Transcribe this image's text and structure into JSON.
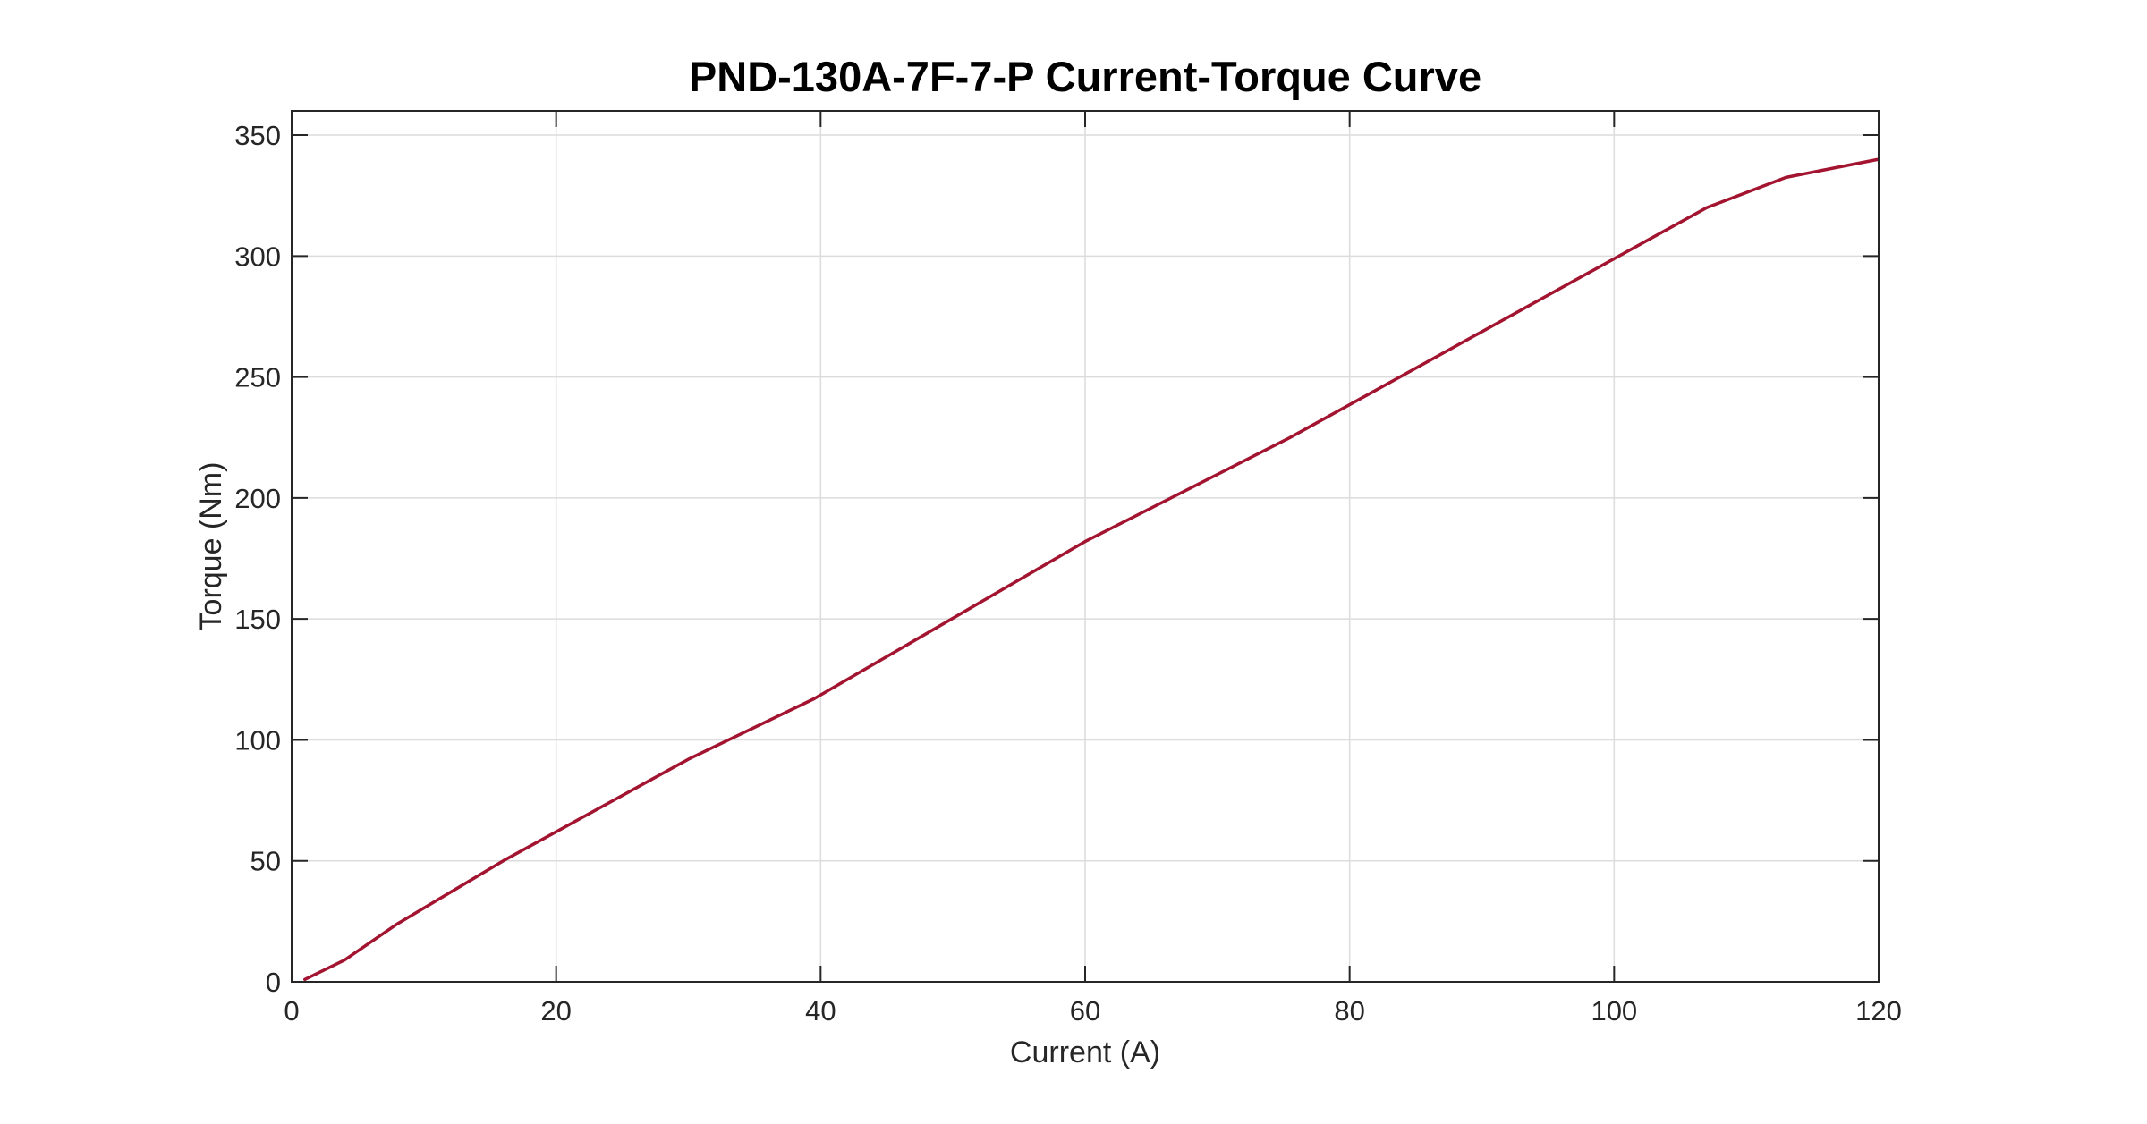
{
  "chart_data": {
    "type": "line",
    "title": "PND-130A-7F-7-P Current-Torque Curve",
    "xlabel": "Current (A)",
    "ylabel": "Torque (Nm)",
    "xlim": [
      0,
      120
    ],
    "ylim": [
      0,
      360
    ],
    "xticks": [
      0,
      20,
      40,
      60,
      80,
      100,
      120
    ],
    "yticks": [
      0,
      50,
      100,
      150,
      200,
      250,
      300,
      350
    ],
    "xtick_labels": [
      "0",
      "20",
      "40",
      "60",
      "80",
      "100",
      "120"
    ],
    "ytick_labels": [
      "0",
      "50",
      "100",
      "150",
      "200",
      "250",
      "300",
      "350"
    ],
    "grid": true,
    "legend": false,
    "series": [
      {
        "color": "#a2142f",
        "x": [
          1,
          4,
          8,
          16,
          30,
          39.5,
          60,
          75.5,
          107,
          113,
          120
        ],
        "y": [
          1,
          9,
          24,
          50,
          92,
          117,
          182,
          225,
          320,
          332.5,
          340
        ]
      }
    ]
  }
}
